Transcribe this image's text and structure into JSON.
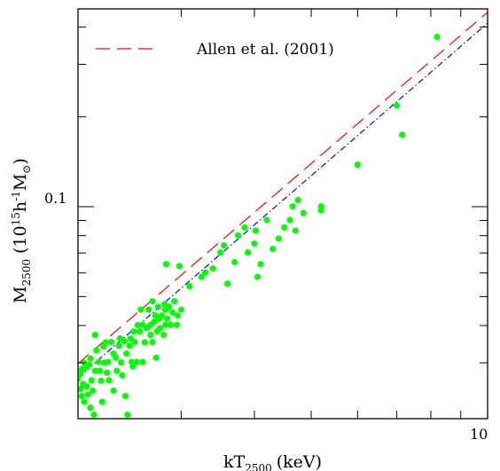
{
  "chart_data": {
    "type": "scatter",
    "title": "",
    "xlabel": {
      "main": "kT",
      "sub": "2500",
      "unit": "(keV)"
    },
    "ylabel": {
      "main": "M",
      "sub": "2500",
      "unit_open": "(10",
      "unit_exp": "15",
      "unit_mid": "h",
      "unit_exp2": "-1",
      "unit_mid2": "M",
      "unit_sub": "⊙",
      "unit_close": ")"
    },
    "x_scale": "log",
    "y_scale": "log",
    "xlim": [
      2,
      10
    ],
    "ylim": [
      0.0195,
      0.46
    ],
    "x_tick_labels": [
      {
        "value": 10,
        "label": "10"
      }
    ],
    "y_tick_labels": [
      {
        "value": 0.1,
        "label": "0.1"
      }
    ],
    "x_minor_ticks": [
      3,
      4,
      5,
      6,
      7,
      8,
      9
    ],
    "y_minor_ticks": [
      0.03,
      0.04,
      0.05,
      0.06,
      0.07,
      0.08,
      0.09,
      0.2,
      0.3,
      0.4
    ],
    "legend": {
      "position": "top-left",
      "entries": [
        {
          "name": "Allen et al. (2001)",
          "color": "#ff0000",
          "style": "dashed"
        }
      ]
    },
    "lines": [
      {
        "name": "Allen et al. (2001)",
        "color": "#ff0000",
        "style": "dashed",
        "points": [
          [
            2,
            0.0298
          ],
          [
            10,
            0.448
          ]
        ]
      },
      {
        "name": "",
        "color": "#0000ff",
        "style": "dash-dot",
        "points": [
          [
            2,
            0.0268
          ],
          [
            10,
            0.412
          ]
        ]
      }
    ],
    "series": [
      {
        "name": "",
        "color": "#00ff00",
        "points": [
          [
            2.02,
            0.0245
          ],
          [
            2.0,
            0.0265
          ],
          [
            2.02,
            0.0275
          ],
          [
            2.03,
            0.0285
          ],
          [
            2.04,
            0.0255
          ],
          [
            2.05,
            0.03
          ],
          [
            2.06,
            0.029
          ],
          [
            2.03,
            0.0232
          ],
          [
            2.05,
            0.0222
          ],
          [
            2.07,
            0.025
          ],
          [
            2.08,
            0.0235
          ],
          [
            2.09,
            0.0295
          ],
          [
            2.1,
            0.031
          ],
          [
            2.11,
            0.0262
          ],
          [
            2.12,
            0.0242
          ],
          [
            2.1,
            0.0212
          ],
          [
            2.13,
            0.0201
          ],
          [
            2.14,
            0.0282
          ],
          [
            2.15,
            0.033
          ],
          [
            2.14,
            0.0372
          ],
          [
            2.17,
            0.0302
          ],
          [
            2.18,
            0.0282
          ],
          [
            2.19,
            0.0261
          ],
          [
            2.21,
            0.034
          ],
          [
            2.22,
            0.03
          ],
          [
            2.2,
            0.0222
          ],
          [
            2.23,
            0.0351
          ],
          [
            2.25,
            0.0302
          ],
          [
            2.24,
            0.0278
          ],
          [
            2.26,
            0.0262
          ],
          [
            2.28,
            0.0352
          ],
          [
            2.3,
            0.0322
          ],
          [
            2.32,
            0.0312
          ],
          [
            2.33,
            0.0282
          ],
          [
            2.3,
            0.0242
          ],
          [
            2.35,
            0.0342
          ],
          [
            2.36,
            0.0362
          ],
          [
            2.37,
            0.0301
          ],
          [
            2.38,
            0.0272
          ],
          [
            2.4,
            0.0354
          ],
          [
            2.42,
            0.0322
          ],
          [
            2.41,
            0.0232
          ],
          [
            2.43,
            0.0201
          ],
          [
            2.45,
            0.0342
          ],
          [
            2.46,
            0.0362
          ],
          [
            2.47,
            0.0302
          ],
          [
            2.48,
            0.0292
          ],
          [
            2.49,
            0.0382
          ],
          [
            2.5,
            0.0352
          ],
          [
            2.52,
            0.0302
          ],
          [
            2.53,
            0.0401
          ],
          [
            2.55,
            0.0382
          ],
          [
            2.56,
            0.0452
          ],
          [
            2.58,
            0.0402
          ],
          [
            2.58,
            0.0302
          ],
          [
            2.6,
            0.0351
          ],
          [
            2.62,
            0.0392
          ],
          [
            2.64,
            0.0452
          ],
          [
            2.66,
            0.0372
          ],
          [
            2.66,
            0.0402
          ],
          [
            2.68,
            0.0482
          ],
          [
            2.68,
            0.0352
          ],
          [
            2.7,
            0.0412
          ],
          [
            2.71,
            0.0432
          ],
          [
            2.72,
            0.0312
          ],
          [
            2.73,
            0.0382
          ],
          [
            2.74,
            0.0462
          ],
          [
            2.75,
            0.0422
          ],
          [
            2.76,
            0.0392
          ],
          [
            2.78,
            0.0432
          ],
          [
            2.8,
            0.0372
          ],
          [
            2.81,
            0.0472
          ],
          [
            2.82,
            0.0452
          ],
          [
            2.82,
            0.0402
          ],
          [
            2.83,
            0.0642
          ],
          [
            2.84,
            0.0422
          ],
          [
            2.86,
            0.0462
          ],
          [
            2.88,
            0.0402
          ],
          [
            2.9,
            0.0442
          ],
          [
            2.92,
            0.0482
          ],
          [
            2.95,
            0.0402
          ],
          [
            2.96,
            0.0432
          ],
          [
            2.98,
            0.0632
          ],
          [
            3.0,
            0.0452
          ],
          [
            3.1,
            0.0542
          ],
          [
            3.25,
            0.0582
          ],
          [
            3.3,
            0.0602
          ],
          [
            3.4,
            0.0621
          ],
          [
            3.5,
            0.0702
          ],
          [
            3.55,
            0.0742
          ],
          [
            3.6,
            0.0552
          ],
          [
            3.7,
            0.0652
          ],
          [
            3.75,
            0.0802
          ],
          [
            3.85,
            0.0852
          ],
          [
            3.9,
            0.0702
          ],
          [
            4.0,
            0.0752
          ],
          [
            4.02,
            0.0832
          ],
          [
            4.05,
            0.0582
          ],
          [
            4.1,
            0.0642
          ],
          [
            4.2,
            0.0902
          ],
          [
            4.3,
            0.0722
          ],
          [
            4.4,
            0.0782
          ],
          [
            4.5,
            0.0852
          ],
          [
            4.6,
            0.0902
          ],
          [
            4.7,
            0.0832
          ],
          [
            4.65,
            0.1002
          ],
          [
            4.75,
            0.1052
          ],
          [
            4.85,
            0.0952
          ],
          [
            5.2,
            0.1002
          ],
          [
            5.2,
            0.0972
          ],
          [
            6.0,
            0.1382
          ],
          [
            7.0,
            0.2182
          ],
          [
            7.15,
            0.1742
          ],
          [
            8.2,
            0.3702
          ]
        ]
      }
    ]
  }
}
